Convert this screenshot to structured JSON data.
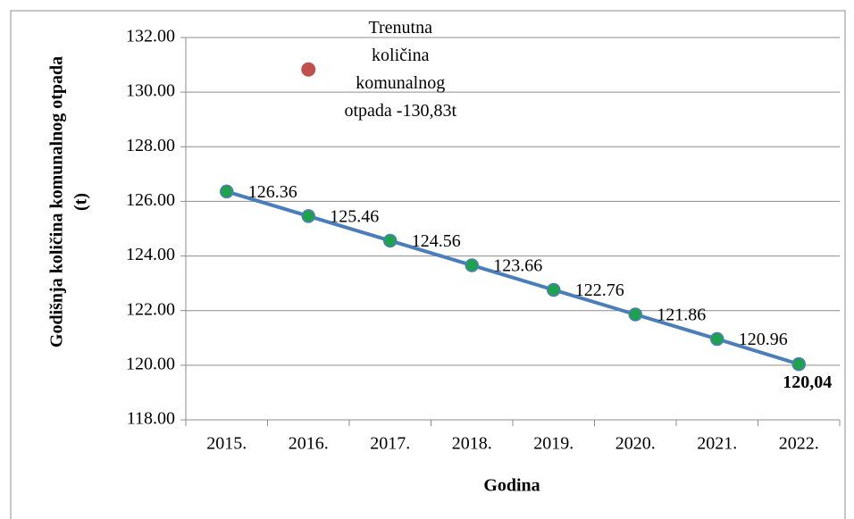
{
  "chart_data": {
    "type": "line",
    "xlabel": "Godina",
    "ylabel": [
      "Godišnja količina komunalnog otpada",
      "(t)"
    ],
    "categories": [
      "2015.",
      "2016.",
      "2017.",
      "2018.",
      "2019.",
      "2020.",
      "2021.",
      "2022."
    ],
    "series": [
      {
        "color": "#4a7ebb",
        "marker_color": "#1ea34c",
        "values": [
          126.36,
          125.46,
          124.56,
          123.66,
          122.76,
          121.86,
          120.96,
          120.04
        ],
        "value_labels": [
          "126.36",
          "125.46",
          "124.56",
          "123.66",
          "122.76",
          "121.86",
          "120.96",
          "120,04"
        ]
      },
      {
        "color": "#c0504d",
        "values": [
          null,
          130.83,
          null,
          null,
          null,
          null,
          null,
          null
        ],
        "value_labels": [
          null,
          "Trenutna količina komunalnog otpada -130,83t",
          null,
          null,
          null,
          null,
          null,
          null
        ]
      }
    ],
    "ylim": [
      118,
      132
    ],
    "yticks": [
      {
        "value": 118,
        "label": "118.00"
      },
      {
        "value": 120,
        "label": "120.00"
      },
      {
        "value": 122,
        "label": "122.00"
      },
      {
        "value": 124,
        "label": "124.00"
      },
      {
        "value": 126,
        "label": "126.00"
      },
      {
        "value": 128,
        "label": "128.00"
      },
      {
        "value": 130,
        "label": "130.00"
      },
      {
        "value": 132,
        "label": "132.00"
      }
    ],
    "grid": true
  }
}
